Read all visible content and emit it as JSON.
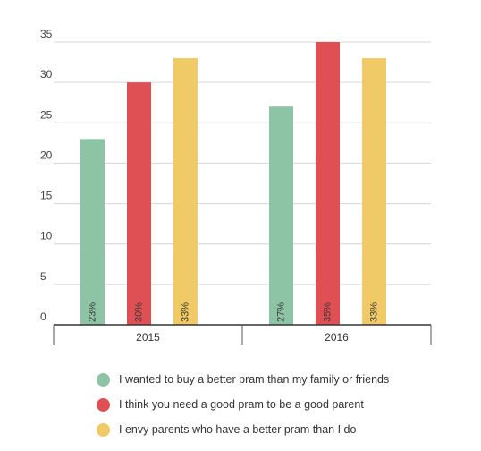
{
  "chart_data": {
    "type": "bar",
    "title": "",
    "xlabel": "",
    "ylabel": "",
    "categories": [
      "2015",
      "2016"
    ],
    "series": [
      {
        "name": "I wanted to buy a better pram than my family or friends",
        "values": [
          23,
          27
        ],
        "labels": [
          "23%",
          "27%"
        ],
        "color": "#8dc4a6"
      },
      {
        "name": "I think you need a good pram to be a good parent",
        "values": [
          30,
          35
        ],
        "labels": [
          "30%",
          "35%"
        ],
        "color": "#de5053"
      },
      {
        "name": "I envy parents who have a better pram than I do",
        "values": [
          33,
          33
        ],
        "labels": [
          "33%",
          "33%"
        ],
        "color": "#f0ca66"
      }
    ],
    "ylim": [
      0,
      35
    ],
    "yticks": [
      "0",
      "5",
      "10",
      "15",
      "20",
      "25",
      "30",
      "35"
    ],
    "grid": true,
    "legend_position": "bottom"
  }
}
